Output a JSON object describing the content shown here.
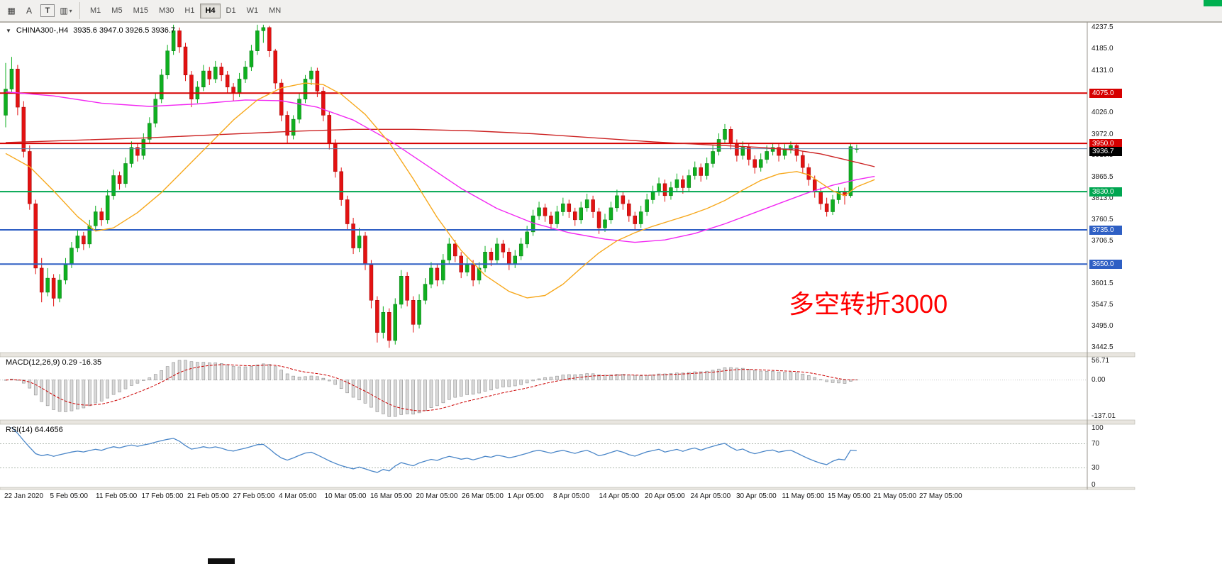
{
  "toolbar": {
    "tools": [
      {
        "name": "window-grid",
        "glyph": "▦",
        "boxed": false,
        "dropdown": false
      },
      {
        "name": "annotation-text-tool",
        "glyph": "A",
        "boxed": false,
        "dropdown": false
      },
      {
        "name": "text-label-tool",
        "glyph": "T",
        "boxed": true,
        "dropdown": false
      },
      {
        "name": "drawing-tools",
        "glyph": "▥",
        "boxed": false,
        "dropdown": true
      }
    ],
    "timeframes": [
      "M1",
      "M5",
      "M15",
      "M30",
      "H1",
      "H4",
      "D1",
      "W1",
      "MN"
    ],
    "active_timeframe": "H4"
  },
  "chart_header": {
    "collapse_glyph": "▼",
    "symbol_period": "CHINA300-,H4",
    "ohlc": "3935.6 3947.0 3926.5 3936.7"
  },
  "annotation": {
    "text": "多空转折3000",
    "color": "#FF0000"
  },
  "indicators": {
    "macd": {
      "label": "MACD(12,26,9) 0.29 -16.35",
      "fast": 12,
      "slow": 26,
      "signal": 9,
      "axis_labels": [
        "56.71",
        "0.00",
        "-137.01"
      ]
    },
    "rsi": {
      "label": "RSI(14) 64.4656",
      "period": 14,
      "levels": [
        70,
        30
      ],
      "axis_labels": [
        "100",
        "70",
        "30",
        "0"
      ]
    }
  },
  "chart_data": {
    "type": "candlestick",
    "title": "CHINA300-,H4",
    "timeframe": "H4",
    "ylim": [
      3430,
      4250
    ],
    "y_ticks": [
      4237.5,
      4185.0,
      4131.0,
      4026.0,
      3972.0,
      3919.5,
      3865.5,
      3813.0,
      3760.5,
      3706.5,
      3601.5,
      3547.5,
      3495.0,
      3442.5
    ],
    "x_labels": [
      "22 Jan 2020",
      "5 Feb 05:00",
      "11 Feb 05:00",
      "17 Feb 05:00",
      "21 Feb 05:00",
      "27 Feb 05:00",
      "4 Mar 05:00",
      "10 Mar 05:00",
      "16 Mar 05:00",
      "20 Mar 05:00",
      "26 Mar 05:00",
      "1 Apr 05:00",
      "8 Apr 05:00",
      "14 Apr 05:00",
      "20 Apr 05:00",
      "24 Apr 05:00",
      "30 Apr 05:00",
      "11 May 05:00",
      "15 May 05:00",
      "21 May 05:00",
      "27 May 05:00"
    ],
    "levels": [
      {
        "value": 4075.0,
        "label": "4075.0",
        "color": "#D60000",
        "line_width": 2
      },
      {
        "value": 3950.0,
        "label": "3950.0",
        "color": "#D60000",
        "line_width": 2
      },
      {
        "value": 3830.0,
        "label": "3830.0",
        "color": "#00A651",
        "line_width": 2
      },
      {
        "value": 3735.0,
        "label": "3735.0",
        "color": "#2E5FC4",
        "line_width": 2
      },
      {
        "value": 3650.0,
        "label": "3650.0",
        "color": "#2E5FC4",
        "line_width": 2
      }
    ],
    "current_price": {
      "value": 3936.7,
      "label": "3936.7",
      "line_color": "#5B7FA6"
    },
    "up_color": "#0FAF20",
    "up_edge": "#067A12",
    "down_color": "#E31212",
    "down_edge": "#9E0505",
    "moving_averages": [
      {
        "name": "ma-slow-red",
        "color": "#CC2222",
        "points": [
          [
            0,
            3952
          ],
          [
            12,
            3958
          ],
          [
            24,
            3964
          ],
          [
            36,
            3972
          ],
          [
            48,
            3980
          ],
          [
            58,
            3985
          ],
          [
            68,
            3985
          ],
          [
            78,
            3981
          ],
          [
            88,
            3974
          ],
          [
            98,
            3964
          ],
          [
            108,
            3954
          ],
          [
            118,
            3946
          ],
          [
            126,
            3940
          ],
          [
            132,
            3933
          ],
          [
            136,
            3924
          ],
          [
            140,
            3910
          ],
          [
            145,
            3892
          ]
        ]
      },
      {
        "name": "ma-medium-magenta",
        "color": "#F228F2",
        "points": [
          [
            0,
            4078
          ],
          [
            8,
            4068
          ],
          [
            16,
            4050
          ],
          [
            24,
            4042
          ],
          [
            32,
            4048
          ],
          [
            40,
            4058
          ],
          [
            46,
            4056
          ],
          [
            52,
            4040
          ],
          [
            58,
            4008
          ],
          [
            64,
            3958
          ],
          [
            70,
            3898
          ],
          [
            76,
            3838
          ],
          [
            82,
            3788
          ],
          [
            88,
            3752
          ],
          [
            94,
            3728
          ],
          [
            100,
            3712
          ],
          [
            105,
            3704
          ],
          [
            110,
            3710
          ],
          [
            115,
            3726
          ],
          [
            120,
            3750
          ],
          [
            125,
            3778
          ],
          [
            130,
            3806
          ],
          [
            134,
            3828
          ],
          [
            138,
            3846
          ],
          [
            142,
            3860
          ],
          [
            145,
            3868
          ]
        ]
      },
      {
        "name": "ma-fast-orange",
        "color": "#F7A81C",
        "points": [
          [
            0,
            3925
          ],
          [
            4,
            3892
          ],
          [
            8,
            3832
          ],
          [
            12,
            3768
          ],
          [
            15,
            3732
          ],
          [
            18,
            3740
          ],
          [
            22,
            3778
          ],
          [
            26,
            3828
          ],
          [
            30,
            3888
          ],
          [
            34,
            3948
          ],
          [
            38,
            4008
          ],
          [
            42,
            4058
          ],
          [
            46,
            4088
          ],
          [
            50,
            4100
          ],
          [
            53,
            4096
          ],
          [
            56,
            4072
          ],
          [
            60,
            4022
          ],
          [
            64,
            3952
          ],
          [
            68,
            3862
          ],
          [
            72,
            3766
          ],
          [
            76,
            3684
          ],
          [
            80,
            3622
          ],
          [
            84,
            3582
          ],
          [
            87,
            3566
          ],
          [
            90,
            3572
          ],
          [
            93,
            3600
          ],
          [
            96,
            3640
          ],
          [
            99,
            3678
          ],
          [
            102,
            3708
          ],
          [
            105,
            3728
          ],
          [
            108,
            3744
          ],
          [
            111,
            3758
          ],
          [
            114,
            3772
          ],
          [
            117,
            3788
          ],
          [
            120,
            3808
          ],
          [
            123,
            3834
          ],
          [
            126,
            3858
          ],
          [
            129,
            3874
          ],
          [
            132,
            3880
          ],
          [
            134,
            3872
          ],
          [
            136,
            3852
          ],
          [
            138,
            3832
          ],
          [
            140,
            3820
          ],
          [
            142,
            3842
          ],
          [
            145,
            3860
          ]
        ]
      }
    ],
    "candles": [
      [
        4020,
        4150,
        3990,
        4085
      ],
      [
        4085,
        4165,
        4075,
        4135
      ],
      [
        4135,
        4145,
        4020,
        4040
      ],
      [
        4040,
        4055,
        3915,
        3930
      ],
      [
        3930,
        3945,
        3785,
        3800
      ],
      [
        3800,
        3810,
        3625,
        3640
      ],
      [
        3640,
        3665,
        3555,
        3580
      ],
      [
        3580,
        3640,
        3570,
        3615
      ],
      [
        3615,
        3625,
        3545,
        3565
      ],
      [
        3565,
        3625,
        3555,
        3610
      ],
      [
        3610,
        3665,
        3600,
        3650
      ],
      [
        3650,
        3705,
        3640,
        3690
      ],
      [
        3690,
        3735,
        3680,
        3720
      ],
      [
        3720,
        3730,
        3685,
        3700
      ],
      [
        3700,
        3760,
        3690,
        3745
      ],
      [
        3745,
        3795,
        3735,
        3780
      ],
      [
        3780,
        3790,
        3745,
        3760
      ],
      [
        3760,
        3835,
        3750,
        3820
      ],
      [
        3820,
        3885,
        3810,
        3870
      ],
      [
        3870,
        3880,
        3835,
        3850
      ],
      [
        3850,
        3915,
        3840,
        3900
      ],
      [
        3900,
        3955,
        3890,
        3940
      ],
      [
        3940,
        3950,
        3905,
        3920
      ],
      [
        3920,
        3975,
        3910,
        3960
      ],
      [
        3960,
        4015,
        3950,
        4000
      ],
      [
        4000,
        4075,
        3990,
        4060
      ],
      [
        4060,
        4135,
        4050,
        4120
      ],
      [
        4120,
        4195,
        4110,
        4180
      ],
      [
        4180,
        4245,
        4170,
        4230
      ],
      [
        4230,
        4238,
        4175,
        4190
      ],
      [
        4190,
        4200,
        4105,
        4120
      ],
      [
        4120,
        4130,
        4040,
        4060
      ],
      [
        4060,
        4105,
        4050,
        4090
      ],
      [
        4090,
        4145,
        4080,
        4130
      ],
      [
        4130,
        4140,
        4095,
        4110
      ],
      [
        4110,
        4155,
        4100,
        4140
      ],
      [
        4140,
        4150,
        4105,
        4120
      ],
      [
        4120,
        4130,
        4075,
        4090
      ],
      [
        4090,
        4100,
        4055,
        4075
      ],
      [
        4075,
        4125,
        4065,
        4110
      ],
      [
        4110,
        4155,
        4100,
        4140
      ],
      [
        4140,
        4195,
        4130,
        4180
      ],
      [
        4180,
        4245,
        4170,
        4230
      ],
      [
        4230,
        4245,
        4200,
        4238
      ],
      [
        4238,
        4242,
        4165,
        4180
      ],
      [
        4180,
        4185,
        4085,
        4100
      ],
      [
        4100,
        4110,
        4005,
        4020
      ],
      [
        4020,
        4030,
        3950,
        3970
      ],
      [
        3970,
        4020,
        3960,
        4010
      ],
      [
        4010,
        4075,
        4000,
        4060
      ],
      [
        4060,
        4120,
        4050,
        4110
      ],
      [
        4110,
        4140,
        4095,
        4130
      ],
      [
        4130,
        4138,
        4065,
        4080
      ],
      [
        4080,
        4090,
        4005,
        4020
      ],
      [
        4020,
        4030,
        3935,
        3950
      ],
      [
        3950,
        3960,
        3865,
        3880
      ],
      [
        3880,
        3890,
        3795,
        3810
      ],
      [
        3810,
        3820,
        3735,
        3750
      ],
      [
        3750,
        3765,
        3675,
        3690
      ],
      [
        3690,
        3740,
        3680,
        3720
      ],
      [
        3720,
        3730,
        3635,
        3650
      ],
      [
        3650,
        3660,
        3540,
        3560
      ],
      [
        3560,
        3570,
        3455,
        3480
      ],
      [
        3480,
        3545,
        3465,
        3530
      ],
      [
        3530,
        3540,
        3442,
        3460
      ],
      [
        3460,
        3565,
        3450,
        3550
      ],
      [
        3550,
        3635,
        3540,
        3620
      ],
      [
        3620,
        3630,
        3545,
        3560
      ],
      [
        3560,
        3570,
        3480,
        3500
      ],
      [
        3500,
        3575,
        3490,
        3560
      ],
      [
        3560,
        3615,
        3550,
        3600
      ],
      [
        3600,
        3655,
        3590,
        3640
      ],
      [
        3640,
        3650,
        3595,
        3610
      ],
      [
        3610,
        3675,
        3600,
        3660
      ],
      [
        3660,
        3715,
        3650,
        3700
      ],
      [
        3700,
        3710,
        3655,
        3670
      ],
      [
        3670,
        3680,
        3615,
        3630
      ],
      [
        3630,
        3665,
        3620,
        3650
      ],
      [
        3650,
        3660,
        3595,
        3610
      ],
      [
        3610,
        3655,
        3600,
        3640
      ],
      [
        3640,
        3695,
        3630,
        3680
      ],
      [
        3680,
        3690,
        3645,
        3660
      ],
      [
        3660,
        3715,
        3650,
        3700
      ],
      [
        3700,
        3710,
        3665,
        3680
      ],
      [
        3680,
        3690,
        3635,
        3650
      ],
      [
        3650,
        3685,
        3640,
        3670
      ],
      [
        3670,
        3715,
        3660,
        3700
      ],
      [
        3700,
        3745,
        3690,
        3730
      ],
      [
        3730,
        3785,
        3720,
        3770
      ],
      [
        3770,
        3805,
        3760,
        3790
      ],
      [
        3790,
        3800,
        3755,
        3770
      ],
      [
        3770,
        3780,
        3735,
        3750
      ],
      [
        3750,
        3795,
        3740,
        3780
      ],
      [
        3780,
        3815,
        3770,
        3800
      ],
      [
        3800,
        3810,
        3765,
        3780
      ],
      [
        3780,
        3790,
        3745,
        3760
      ],
      [
        3760,
        3805,
        3750,
        3790
      ],
      [
        3790,
        3825,
        3780,
        3810
      ],
      [
        3810,
        3820,
        3765,
        3780
      ],
      [
        3780,
        3790,
        3725,
        3740
      ],
      [
        3740,
        3775,
        3730,
        3760
      ],
      [
        3760,
        3805,
        3750,
        3790
      ],
      [
        3790,
        3835,
        3780,
        3820
      ],
      [
        3820,
        3830,
        3785,
        3800
      ],
      [
        3800,
        3810,
        3755,
        3770
      ],
      [
        3770,
        3780,
        3735,
        3750
      ],
      [
        3750,
        3795,
        3740,
        3780
      ],
      [
        3780,
        3825,
        3770,
        3810
      ],
      [
        3810,
        3845,
        3800,
        3830
      ],
      [
        3830,
        3865,
        3820,
        3850
      ],
      [
        3850,
        3860,
        3805,
        3820
      ],
      [
        3820,
        3855,
        3810,
        3840
      ],
      [
        3840,
        3875,
        3830,
        3860
      ],
      [
        3860,
        3870,
        3825,
        3840
      ],
      [
        3840,
        3885,
        3830,
        3870
      ],
      [
        3870,
        3905,
        3860,
        3890
      ],
      [
        3890,
        3900,
        3855,
        3870
      ],
      [
        3870,
        3915,
        3860,
        3900
      ],
      [
        3900,
        3945,
        3890,
        3930
      ],
      [
        3930,
        3975,
        3920,
        3960
      ],
      [
        3960,
        3998,
        3950,
        3985
      ],
      [
        3985,
        3992,
        3935,
        3950
      ],
      [
        3950,
        3960,
        3905,
        3920
      ],
      [
        3920,
        3955,
        3910,
        3940
      ],
      [
        3940,
        3950,
        3895,
        3910
      ],
      [
        3910,
        3920,
        3875,
        3890
      ],
      [
        3890,
        3925,
        3880,
        3910
      ],
      [
        3910,
        3945,
        3900,
        3930
      ],
      [
        3930,
        3952,
        3920,
        3940
      ],
      [
        3940,
        3950,
        3905,
        3920
      ],
      [
        3920,
        3948,
        3910,
        3935
      ],
      [
        3935,
        3955,
        3925,
        3945
      ],
      [
        3945,
        3950,
        3905,
        3920
      ],
      [
        3920,
        3930,
        3875,
        3890
      ],
      [
        3890,
        3900,
        3845,
        3860
      ],
      [
        3860,
        3870,
        3815,
        3830
      ],
      [
        3830,
        3840,
        3785,
        3800
      ],
      [
        3800,
        3815,
        3768,
        3780
      ],
      [
        3780,
        3822,
        3772,
        3810
      ],
      [
        3810,
        3842,
        3800,
        3830
      ],
      [
        3830,
        3840,
        3798,
        3820
      ],
      [
        3820,
        3952,
        3815,
        3942
      ],
      [
        3935.6,
        3947,
        3926.5,
        3936.7
      ]
    ]
  }
}
